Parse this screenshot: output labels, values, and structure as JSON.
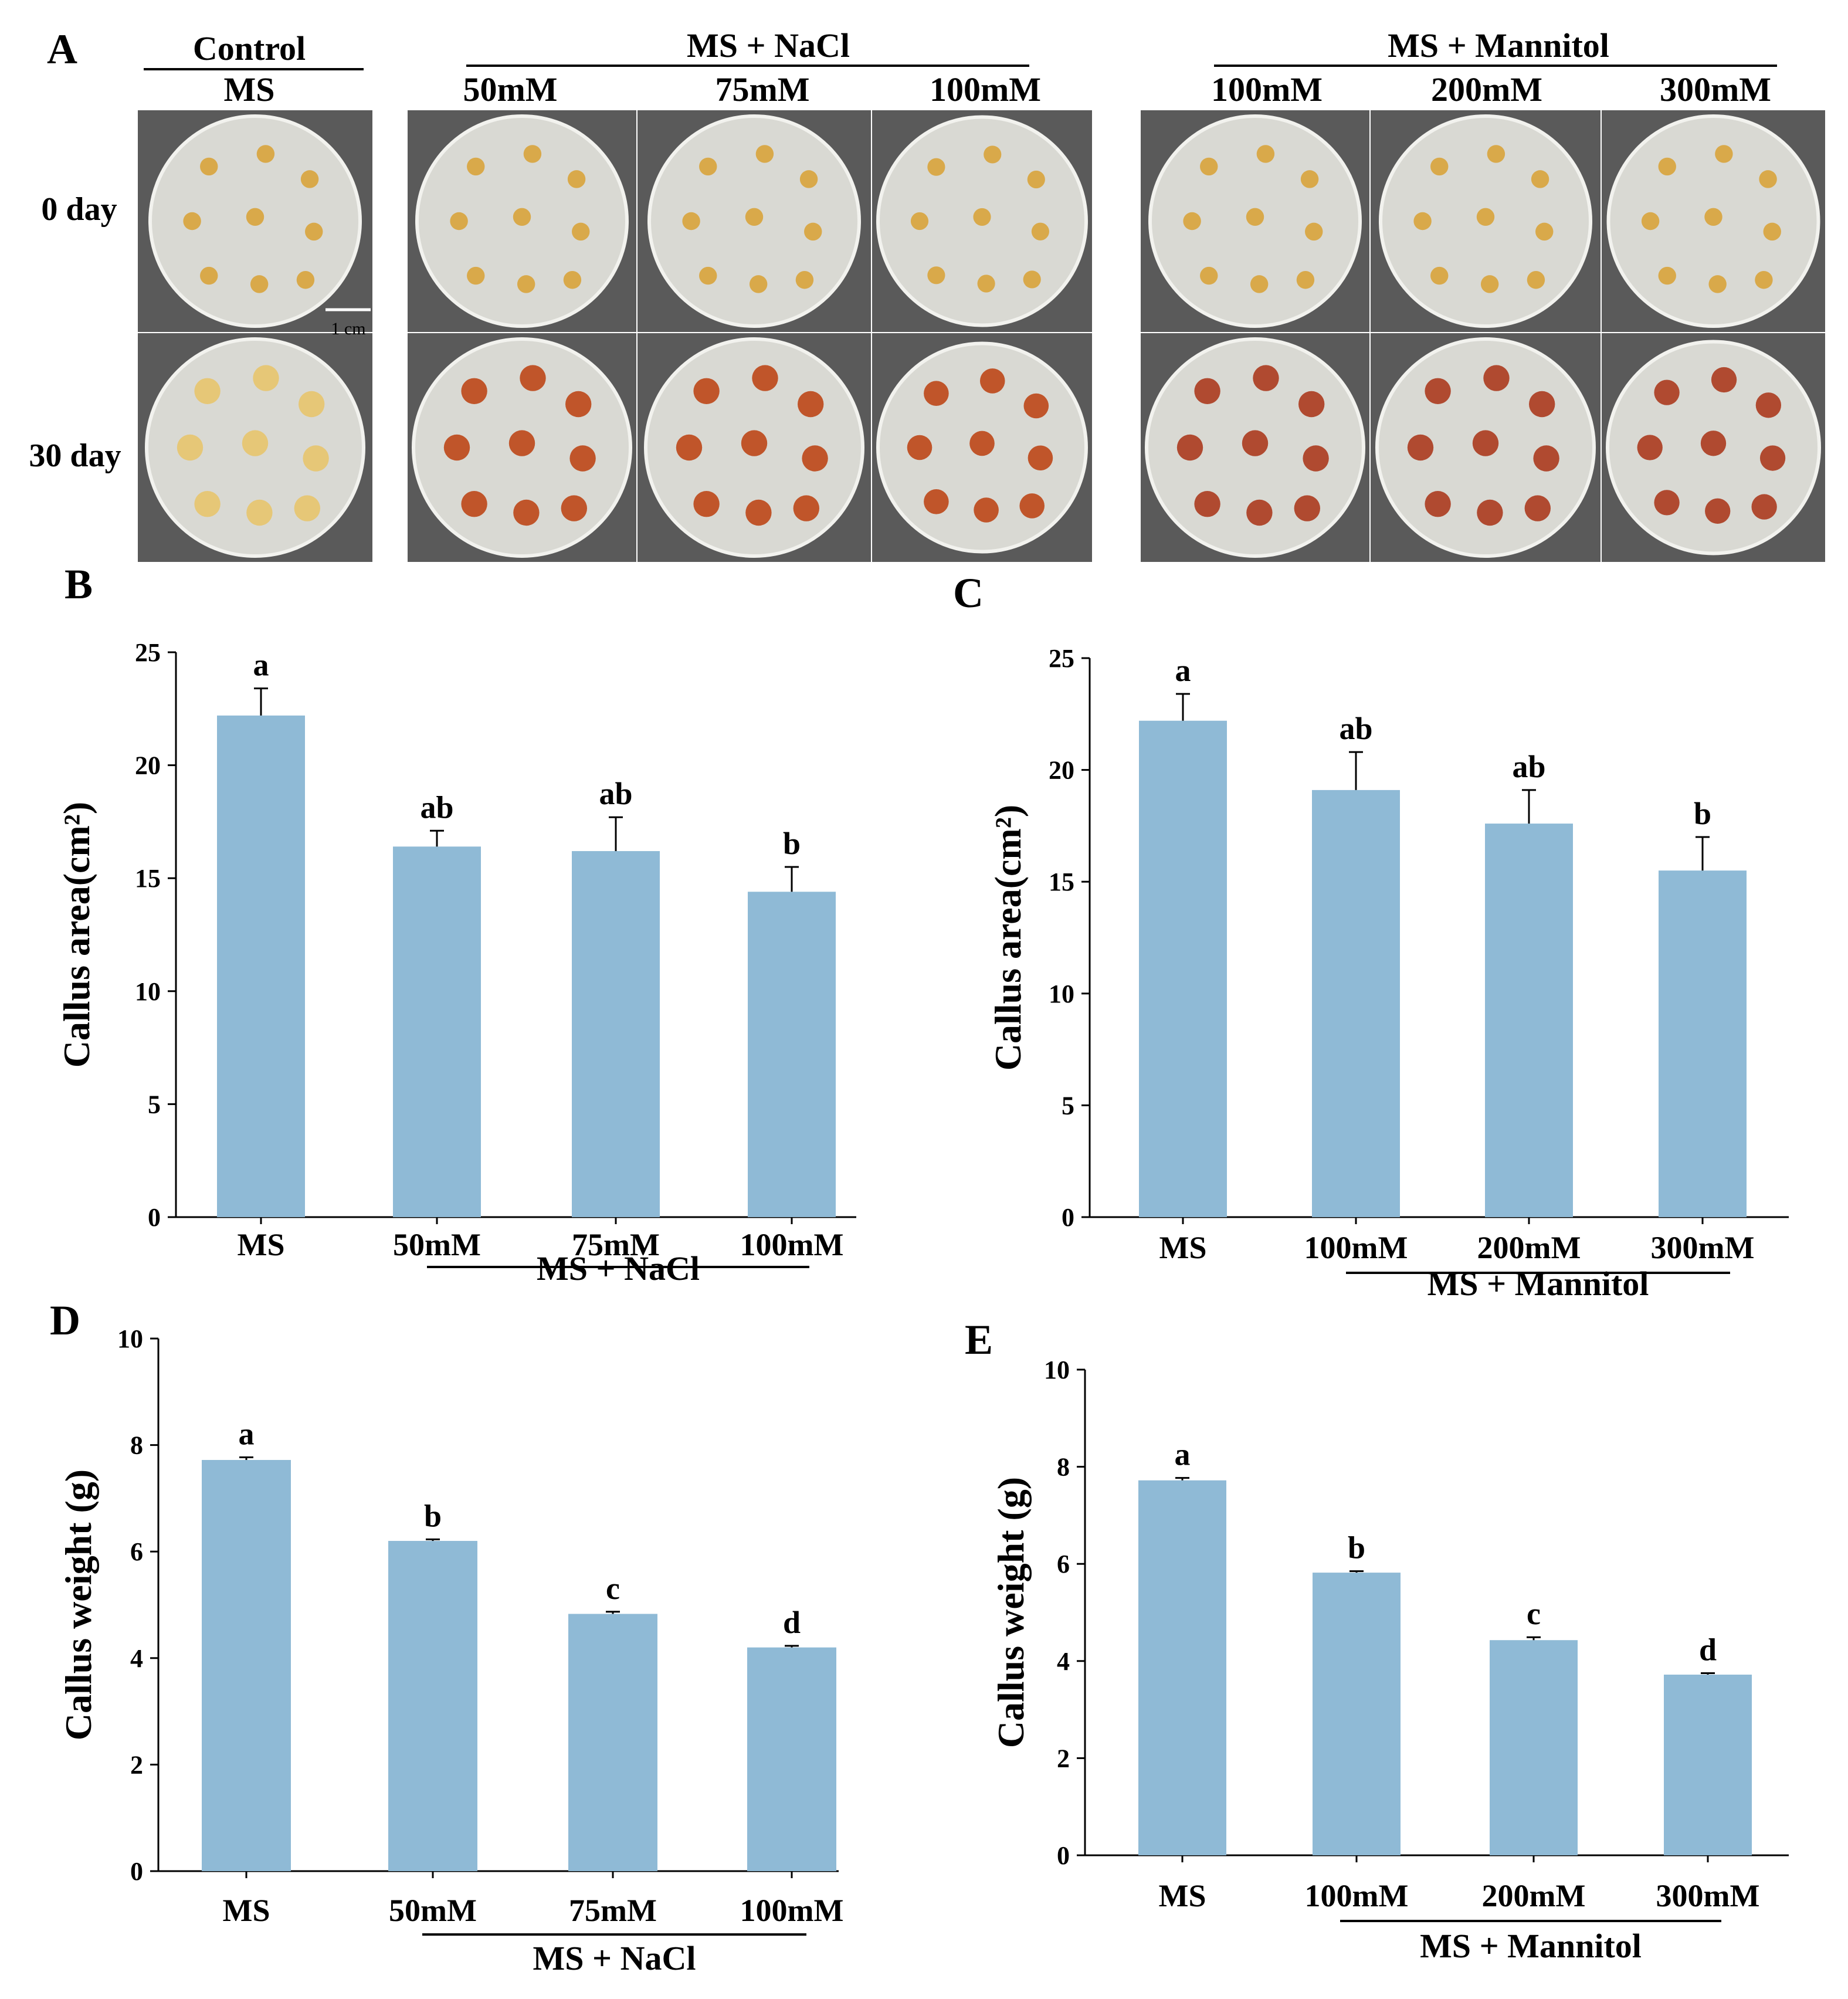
{
  "colors": {
    "bar": "#8fbad6",
    "axis": "#000000",
    "plate_bg": "#5a5a5a",
    "plate_dish": "#d9d9d3",
    "callus_day0": "#d9a94a",
    "callus_ms30": "#e6c777",
    "callus_nacl30": "#c0552a",
    "callus_mann30": "#b04a30"
  },
  "panel_a": {
    "label": "A",
    "control_header": "Control",
    "control_medium": "MS",
    "nacl_header": "MS + NaCl",
    "nacl_concs": [
      "50mM",
      "75mM",
      "100mM"
    ],
    "mannitol_header": "MS + Mannitol",
    "mannitol_concs": [
      "100mM",
      "200mM",
      "300mM"
    ],
    "rows": [
      "0 day",
      "30 day"
    ],
    "scale_bar": "1 cm"
  },
  "chart_data": [
    {
      "panel": "B",
      "type": "bar",
      "categories": [
        "MS",
        "50mM",
        "75mM",
        "100mM"
      ],
      "values": [
        22.2,
        16.4,
        16.2,
        14.4
      ],
      "errors": [
        1.2,
        0.7,
        1.5,
        1.1
      ],
      "significance": [
        "a",
        "ab",
        "ab",
        "b"
      ],
      "ylabel": "Callus area(cm²)",
      "ylim": [
        0,
        25
      ],
      "yticks": [
        "0",
        "5",
        "10",
        "15",
        "20",
        "25"
      ],
      "group_label": "MS + NaCl"
    },
    {
      "panel": "C",
      "type": "bar",
      "categories": [
        "MS",
        "100mM",
        "200mM",
        "300mM"
      ],
      "values": [
        22.2,
        19.1,
        17.6,
        15.5
      ],
      "errors": [
        1.2,
        1.7,
        1.5,
        1.5
      ],
      "significance": [
        "a",
        "ab",
        "ab",
        "b"
      ],
      "ylabel": "Callus area(cm²)",
      "ylim": [
        0,
        25
      ],
      "yticks": [
        "0",
        "5",
        "10",
        "15",
        "20",
        "25"
      ],
      "group_label": "MS + Mannitol"
    },
    {
      "panel": "D",
      "type": "bar",
      "categories": [
        "MS",
        "50mM",
        "75mM",
        "100mM"
      ],
      "values": [
        7.72,
        6.2,
        4.83,
        4.2
      ],
      "errors": [
        0.05,
        0.03,
        0.04,
        0.03
      ],
      "significance": [
        "a",
        "b",
        "c",
        "d"
      ],
      "ylabel": "Callus weight (g)",
      "ylim": [
        0,
        10
      ],
      "yticks": [
        "0",
        "2",
        "4",
        "6",
        "8",
        "10"
      ],
      "group_label": "MS + NaCl"
    },
    {
      "panel": "E",
      "type": "bar",
      "categories": [
        "MS",
        "100mM",
        "200mM",
        "300mM"
      ],
      "values": [
        7.72,
        5.82,
        4.43,
        3.72
      ],
      "errors": [
        0.05,
        0.03,
        0.06,
        0.03
      ],
      "significance": [
        "a",
        "b",
        "c",
        "d"
      ],
      "ylabel": "Callus weight (g)",
      "ylim": [
        0,
        10
      ],
      "yticks": [
        "0",
        "2",
        "4",
        "6",
        "8",
        "10"
      ],
      "group_label": "MS + Mannitol"
    }
  ]
}
